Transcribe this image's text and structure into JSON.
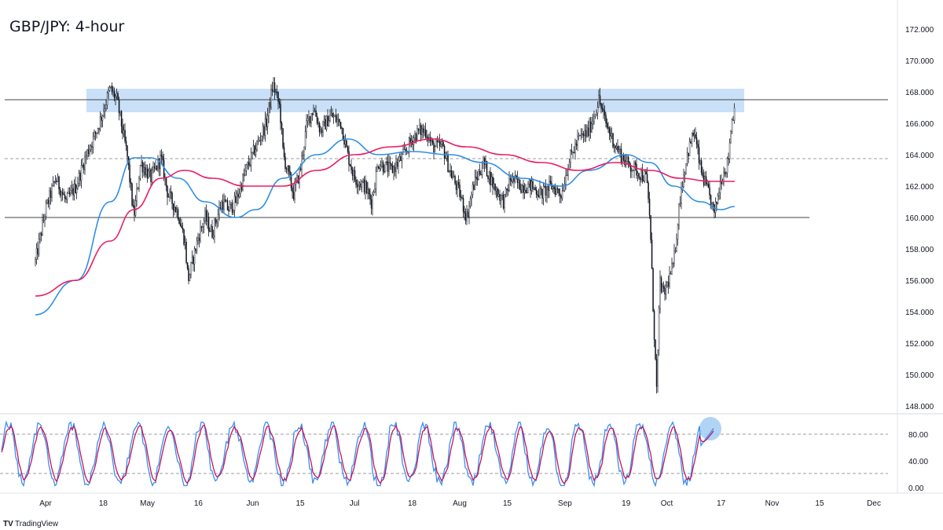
{
  "title": "GBP/JPY: 4-hour",
  "brand": {
    "name": "TradingView",
    "logo": "TV"
  },
  "colors": {
    "candle": "#131722",
    "sma_fast": "#2f8fe6",
    "sma_slow": "#e91e63",
    "zone": "#bfdbf7",
    "level_line": "#444444",
    "dashed_line": "#9e9e9e",
    "stoch_k": "#3d8ef0",
    "stoch_d": "#c2185b",
    "stoch_marker": "#9ec9f2"
  },
  "chart_data": [
    {
      "type": "line",
      "subtype": "candlestick",
      "title": "GBP/JPY: 4-hour",
      "ylim": [
        147.3,
        173.0
      ],
      "y_ticks": [
        "172.000",
        "170.000",
        "168.000",
        "166.000",
        "164.000",
        "162.000",
        "160.000",
        "158.000",
        "156.000",
        "154.000",
        "152.000",
        "150.000",
        "148.000"
      ],
      "x_ticks": [
        "Apr",
        "18",
        "May",
        "16",
        "Jun",
        "15",
        "Jul",
        "18",
        "Aug",
        "15",
        "Sep",
        "19",
        "Oct",
        "17",
        "Nov",
        "15",
        "Dec"
      ],
      "price_path": [
        [
          "Mar 29",
          157.2
        ],
        [
          "Apr 1",
          160.5
        ],
        [
          "Apr 4",
          162.5
        ],
        [
          "Apr 7",
          161.0
        ],
        [
          "Apr 10",
          162.0
        ],
        [
          "Apr 13",
          164.0
        ],
        [
          "Apr 16",
          165.5
        ],
        [
          "Apr 18",
          166.8
        ],
        [
          "Apr 20",
          168.2
        ],
        [
          "Apr 22",
          167.5
        ],
        [
          "Apr 25",
          164.0
        ],
        [
          "Apr 27",
          160.0
        ],
        [
          "Apr 29",
          163.5
        ],
        [
          "May 2",
          162.5
        ],
        [
          "May 5",
          163.8
        ],
        [
          "May 7",
          161.5
        ],
        [
          "May 10",
          160.3
        ],
        [
          "May 12",
          158.5
        ],
        [
          "May 13",
          156.0
        ],
        [
          "May 16",
          158.8
        ],
        [
          "May 18",
          160.0
        ],
        [
          "May 20",
          159.0
        ],
        [
          "May 23",
          161.0
        ],
        [
          "May 25",
          160.5
        ],
        [
          "May 27",
          161.0
        ],
        [
          "May 30",
          163.0
        ],
        [
          "Jun 2",
          164.5
        ],
        [
          "Jun 5",
          166.0
        ],
        [
          "Jun 7",
          168.5
        ],
        [
          "Jun 9",
          167.0
        ],
        [
          "Jun 10",
          164.0
        ],
        [
          "Jun 13",
          161.5
        ],
        [
          "Jun 15",
          163.0
        ],
        [
          "Jun 17",
          166.0
        ],
        [
          "Jun 19",
          167.0
        ],
        [
          "Jun 21",
          165.5
        ],
        [
          "Jun 24",
          166.5
        ],
        [
          "Jun 27",
          166.0
        ],
        [
          "Jun 29",
          164.0
        ],
        [
          "Jul 1",
          162.5
        ],
        [
          "Jul 4",
          162.0
        ],
        [
          "Jul 6",
          161.0
        ],
        [
          "Jul 8",
          163.5
        ],
        [
          "Jul 12",
          163.0
        ],
        [
          "Jul 15",
          163.8
        ],
        [
          "Jul 18",
          165.0
        ],
        [
          "Jul 20",
          165.5
        ],
        [
          "Jul 22",
          165.5
        ],
        [
          "Jul 24",
          164.5
        ],
        [
          "Jul 27",
          164.5
        ],
        [
          "Jul 29",
          163.0
        ],
        [
          "Aug 1",
          161.5
        ],
        [
          "Aug 3",
          160.0
        ],
        [
          "Aug 5",
          162.0
        ],
        [
          "Aug 8",
          163.5
        ],
        [
          "Aug 11",
          162.0
        ],
        [
          "Aug 14",
          161.0
        ],
        [
          "Aug 16",
          162.5
        ],
        [
          "Aug 19",
          162.0
        ],
        [
          "Aug 22",
          162.0
        ],
        [
          "Aug 25",
          161.5
        ],
        [
          "Aug 28",
          162.0
        ],
        [
          "Aug 31",
          161.5
        ],
        [
          "Sep 2",
          163.5
        ],
        [
          "Sep 5",
          165.0
        ],
        [
          "Sep 8",
          165.5
        ],
        [
          "Sep 11",
          167.5
        ],
        [
          "Sep 13",
          166.0
        ],
        [
          "Sep 16",
          164.5
        ],
        [
          "Sep 19",
          163.5
        ],
        [
          "Sep 22",
          163.0
        ],
        [
          "Sep 25",
          162.5
        ],
        [
          "Sep 26",
          160.0
        ],
        [
          "Sep 27",
          154.0
        ],
        [
          "Sep 28",
          149.0
        ],
        [
          "Sep 29",
          156.0
        ],
        [
          "Sep 30",
          155.0
        ],
        [
          "Oct 3",
          157.0
        ],
        [
          "Oct 5",
          161.5
        ],
        [
          "Oct 7",
          164.0
        ],
        [
          "Oct 9",
          165.5
        ],
        [
          "Oct 11",
          163.0
        ],
        [
          "Oct 14",
          161.0
        ],
        [
          "Oct 15",
          160.2
        ],
        [
          "Oct 17",
          162.5
        ],
        [
          "Oct 19",
          163.5
        ],
        [
          "Oct 20",
          166.0
        ],
        [
          "Oct 21",
          167.0
        ]
      ],
      "series": [
        {
          "values": [
            [
              "Mar 29",
              153.8
            ],
            [
              "Apr 10",
              156.0
            ],
            [
              "Apr 20",
              161.0
            ],
            [
              "Apr 27",
              163.8
            ],
            [
              "May 2",
              163.8
            ],
            [
              "May 10",
              162.5
            ],
            [
              "May 18",
              161.0
            ],
            [
              "May 27",
              160.0
            ],
            [
              "Jun 2",
              160.5
            ],
            [
              "Jun 10",
              162.5
            ],
            [
              "Jun 20",
              164.0
            ],
            [
              "Jun 29",
              165.0
            ],
            [
              "Jul 8",
              164.0
            ],
            [
              "Jul 18",
              164.2
            ],
            [
              "Jul 29",
              164.0
            ],
            [
              "Aug 8",
              163.5
            ],
            [
              "Aug 19",
              162.5
            ],
            [
              "Aug 31",
              162.0
            ],
            [
              "Sep 8",
              163.0
            ],
            [
              "Sep 19",
              164.0
            ],
            [
              "Sep 26",
              163.5
            ],
            [
              "Oct 3",
              162.0
            ],
            [
              "Oct 11",
              161.0
            ],
            [
              "Oct 17",
              160.5
            ],
            [
              "Oct 21",
              160.7
            ]
          ]
        },
        {
          "values": [
            [
              "Mar 29",
              155.0
            ],
            [
              "Apr 10",
              156.0
            ],
            [
              "Apr 20",
              158.5
            ],
            [
              "Apr 27",
              160.5
            ],
            [
              "May 5",
              162.5
            ],
            [
              "May 12",
              163.0
            ],
            [
              "May 20",
              162.5
            ],
            [
              "May 30",
              162.0
            ],
            [
              "Jun 10",
              162.0
            ],
            [
              "Jun 20",
              163.0
            ],
            [
              "Jul 1",
              164.0
            ],
            [
              "Jul 12",
              164.5
            ],
            [
              "Jul 24",
              165.0
            ],
            [
              "Aug 3",
              164.5
            ],
            [
              "Aug 14",
              164.0
            ],
            [
              "Aug 25",
              163.5
            ],
            [
              "Sep 5",
              163.0
            ],
            [
              "Sep 16",
              163.5
            ],
            [
              "Sep 26",
              163.0
            ],
            [
              "Oct 5",
              162.5
            ],
            [
              "Oct 14",
              162.3
            ],
            [
              "Oct 21",
              162.3
            ]
          ]
        }
      ],
      "annotations": {
        "resistance_zone": [
          166.8,
          168.1
        ],
        "resistance_line": 167.5,
        "support_line": 160.0,
        "midline_dashed": 163.7
      }
    },
    {
      "type": "line",
      "subtype": "stochastic",
      "ylim": [
        0,
        100
      ],
      "y_ticks": [
        "80.00",
        "40.00",
        "0.00"
      ],
      "levels_dashed": [
        80,
        20
      ],
      "highlight_marker": [
        "Oct 21",
        85
      ]
    }
  ]
}
